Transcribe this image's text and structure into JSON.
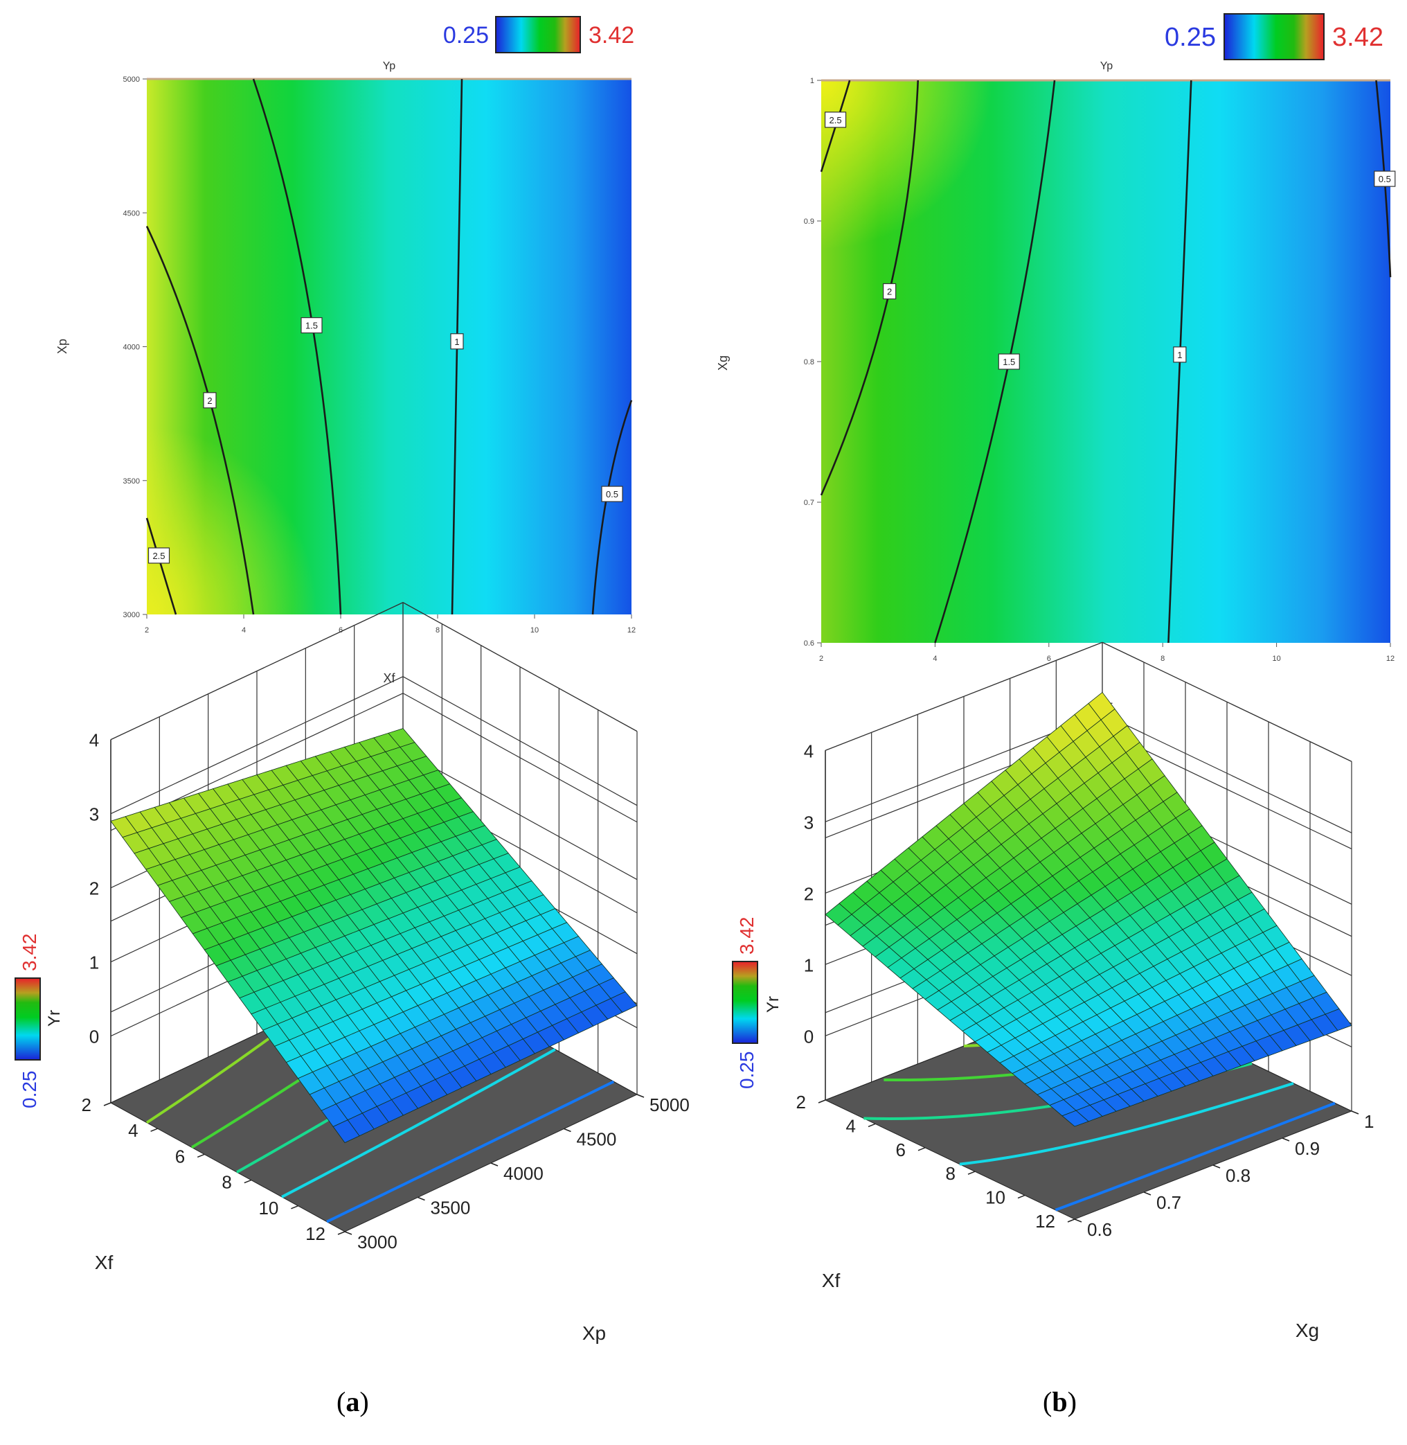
{
  "colorbar": {
    "min": "0.25",
    "max": "3.42",
    "min_color": "#1a22d8",
    "max_color": "#e8202a"
  },
  "panels": [
    {
      "caption_open": "(",
      "caption_letter": "a",
      "caption_close": ")"
    },
    {
      "caption_open": "(",
      "caption_letter": "b",
      "caption_close": ")"
    }
  ],
  "chart_data": [
    {
      "type": "contour",
      "title": "Yp",
      "xlabel": "Xf",
      "ylabel": "Xp",
      "xlim": [
        2,
        12
      ],
      "ylim": [
        3000,
        5000
      ],
      "x_ticks": [
        "2",
        "4",
        "6",
        "8",
        "10",
        "12"
      ],
      "y_ticks": [
        "3000",
        "3500",
        "4000",
        "4500",
        "5000"
      ],
      "colorbar": {
        "min": 0.25,
        "max": 3.42
      },
      "contours": [
        {
          "level": "2.5",
          "points": [
            [
              2,
              3360
            ],
            [
              2.6,
              3000
            ]
          ],
          "label_at": [
            2.25,
            3220
          ]
        },
        {
          "level": "2",
          "points": [
            [
              2,
              4450
            ],
            [
              3.3,
              3800
            ],
            [
              4.2,
              3000
            ]
          ],
          "label_at": [
            3.3,
            3800
          ]
        },
        {
          "level": "1.5",
          "points": [
            [
              4.2,
              5000
            ],
            [
              5.4,
              4100
            ],
            [
              6.0,
              3000
            ]
          ],
          "label_at": [
            5.4,
            4080
          ]
        },
        {
          "level": "1",
          "points": [
            [
              8.5,
              5000
            ],
            [
              8.4,
              4000
            ],
            [
              8.3,
              3000
            ]
          ],
          "label_at": [
            8.4,
            4020
          ]
        },
        {
          "level": "0.5",
          "points": [
            [
              12,
              3800
            ],
            [
              11.5,
              3450
            ],
            [
              11.2,
              3000
            ]
          ],
          "label_at": [
            11.6,
            3450
          ]
        }
      ]
    },
    {
      "type": "contour",
      "title": "Yp",
      "xlabel": "Xf",
      "ylabel": "Xg",
      "xlim": [
        2,
        12
      ],
      "ylim": [
        0.6,
        1
      ],
      "x_ticks": [
        "2",
        "4",
        "6",
        "8",
        "10",
        "12"
      ],
      "y_ticks": [
        "0.6",
        "0.7",
        "0.8",
        "0.9",
        "1"
      ],
      "colorbar": {
        "min": 0.25,
        "max": 3.42
      },
      "contours": [
        {
          "level": "2.5",
          "points": [
            [
              2,
              0.935
            ],
            [
              2.35,
              0.98
            ],
            [
              2.5,
              1.0
            ]
          ],
          "label_at": [
            2.25,
            0.972
          ]
        },
        {
          "level": "2",
          "points": [
            [
              2,
              0.705
            ],
            [
              3.2,
              0.85
            ],
            [
              3.7,
              1.0
            ]
          ],
          "label_at": [
            3.2,
            0.85
          ]
        },
        {
          "level": "1.5",
          "points": [
            [
              4.0,
              0.6
            ],
            [
              5.3,
              0.8
            ],
            [
              6.1,
              1.0
            ]
          ],
          "label_at": [
            5.3,
            0.8
          ]
        },
        {
          "level": "1",
          "points": [
            [
              8.1,
              0.6
            ],
            [
              8.3,
              0.805
            ],
            [
              8.5,
              1.0
            ]
          ],
          "label_at": [
            8.3,
            0.805
          ]
        },
        {
          "level": "0.5",
          "points": [
            [
              11.75,
              1.0
            ],
            [
              11.9,
              0.93
            ],
            [
              12,
              0.86
            ]
          ],
          "label_at": [
            11.9,
            0.93
          ]
        }
      ]
    },
    {
      "type": "surface",
      "zlabel": "Yr",
      "xlabel": "Xf",
      "ylabel": "Xp",
      "xlim": [
        2,
        12
      ],
      "ylim": [
        3000,
        5000
      ],
      "zlim": [
        0,
        4
      ],
      "x_ticks": [
        "2",
        "4",
        "6",
        "8",
        "10",
        "12"
      ],
      "y_ticks": [
        "3000",
        "3500",
        "4000",
        "4500",
        "5000"
      ],
      "z_ticks": [
        "0",
        "1",
        "2",
        "3",
        "4"
      ],
      "colorbar": {
        "min": 0.25,
        "max": 3.42
      },
      "corners": [
        {
          "Xf": 2,
          "Xp": 3000,
          "Yr": 2.9
        },
        {
          "Xf": 2,
          "Xp": 5000,
          "Yr": 2.3
        },
        {
          "Xf": 12,
          "Xp": 3000,
          "Yr": 0.3
        },
        {
          "Xf": 12,
          "Xp": 5000,
          "Yr": 0.3
        }
      ]
    },
    {
      "type": "surface",
      "zlabel": "Yr",
      "xlabel": "Xf",
      "ylabel": "Xg",
      "xlim": [
        2,
        12
      ],
      "ylim": [
        0.6,
        1
      ],
      "zlim": [
        0,
        4
      ],
      "x_ticks": [
        "2",
        "4",
        "6",
        "8",
        "10",
        "12"
      ],
      "y_ticks": [
        "0.6",
        "0.7",
        "0.8",
        "0.9",
        "1"
      ],
      "z_ticks": [
        "0",
        "1",
        "2",
        "3",
        "4"
      ],
      "colorbar": {
        "min": 0.25,
        "max": 3.42
      },
      "corners": [
        {
          "Xf": 2,
          "Xg": 0.6,
          "Yr": 1.7
        },
        {
          "Xf": 2,
          "Xg": 1,
          "Yr": 3.3
        },
        {
          "Xf": 12,
          "Xg": 0.6,
          "Yr": 0.4
        },
        {
          "Xf": 12,
          "Xg": 1,
          "Yr": 0.3
        }
      ]
    }
  ]
}
